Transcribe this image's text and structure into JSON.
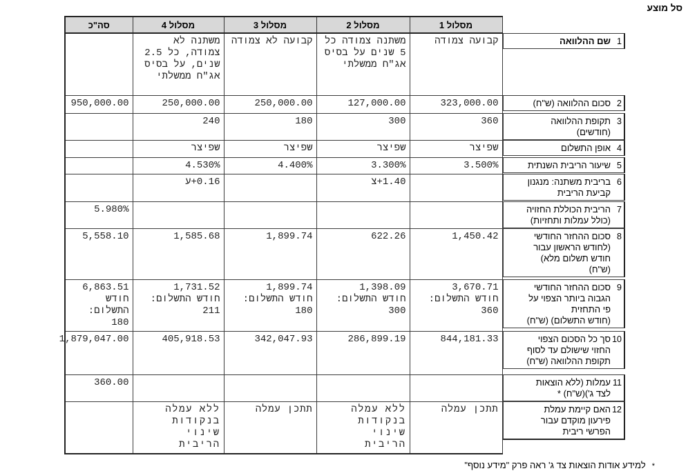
{
  "title": "סל מוצע",
  "table": {
    "column_headers": [
      "מסלול 1",
      "מסלול 2",
      "מסלול 3",
      "מסלול 4",
      "סה\"כ"
    ],
    "rows": [
      {
        "num": "1",
        "label": "שם ההלוואה",
        "track1": "קבועה צמודה",
        "track2": "משתנה צמודה כל\n5 שנים על בסיס\nאג\"ח ממשלתי",
        "track3": "קבועה לא צמודה",
        "track4": "משתנה לא\nצמודה, כל 2.5\nשנים, על בסיס\nאג\"ח ממשלתי",
        "total": ""
      },
      {
        "num": "2",
        "label": "סכום ההלוואה (ש\"ח)",
        "track1": "323,000.00",
        "track2": "127,000.00",
        "track3": "250,000.00",
        "track4": "250,000.00",
        "total": "950,000.00"
      },
      {
        "num": "3",
        "label": "תקופת ההלוואה\n(חודשים)",
        "track1": "360",
        "track2": "300",
        "track3": "180",
        "track4": "240",
        "total": ""
      },
      {
        "num": "4",
        "label": "אופן התשלום",
        "track1": "שפיצר",
        "track2": "שפיצר",
        "track3": "שפיצר",
        "track4": "שפיצר",
        "total": ""
      },
      {
        "num": "5",
        "label": "שיעור הריבית השנתית",
        "track1": "3.500%",
        "track2": "3.300%",
        "track3": "4.400%",
        "track4": "4.530%",
        "total": ""
      },
      {
        "num": "6",
        "label": "בריבית משתנה: מנגנון\nקביעת הריבית",
        "track1": "",
        "track2": "צ+1.40",
        "track3": "",
        "track4": "ע+0.16",
        "total": ""
      },
      {
        "num": "7",
        "label": "הריבית הכוללת החזויה\n(כולל עמלות ותחזיות)",
        "track1": "",
        "track2": "",
        "track3": "",
        "track4": "",
        "total": "5.980%"
      },
      {
        "num": "8",
        "label": "סכום ההחזר החודשי\n(לחודש הראשון עבור\nחודש תשלום מלא)\n(ש\"ח)",
        "track1": "1,450.42",
        "track2": "622.26",
        "track3": "1,899.74",
        "track4": "1,585.68",
        "total": "5,558.10"
      },
      {
        "num": "9",
        "label": "סכום ההחזר החודשי\nהגבוה ביותר הצפוי על\nפי התחזית\n(חודש התשלום) (ש\"ח)",
        "track1": "3,670.71\nחודש התשלום:\n360",
        "track2": "1,398.09\nחודש התשלום:\n300",
        "track3": "1,899.74\nחודש התשלום:\n180",
        "track4": "1,731.52\nחודש התשלום:\n211",
        "total": "6,863.51\nחודש התשלום:\n180"
      },
      {
        "num": "10",
        "label": "סך כל הסכום הצפוי\nהחזוי שישולם עד לסוף\nתקופת ההלוואה (ש\"ח)",
        "track1": "844,181.33",
        "track2": "286,899.19",
        "track3": "342,047.93",
        "track4": "405,918.53",
        "total": "1,879,047.00"
      },
      {
        "num": "11",
        "label": "עמלות (ללא הוצאות\nלצד ג')(ש\"ח) *",
        "track1": "",
        "track2": "",
        "track3": "",
        "track4": "",
        "total": "360.00"
      },
      {
        "num": "12",
        "label": "האם קיימת עמלת\nפירעון מוקדם עבור\nהפרשי ריבית",
        "track1": "תתכן עמלה",
        "track2": "ללא עמלה\nבנקודות שינוי\nהריבית",
        "track3": "תתכן עמלה",
        "track4": "ללא עמלה\nבנקודות שינוי\nהריבית",
        "total": ""
      }
    ]
  },
  "footnote": {
    "marker": "*",
    "text": "למידע אודות הוצאות צד ג' ראה פרק \"מידע נוסף\""
  }
}
